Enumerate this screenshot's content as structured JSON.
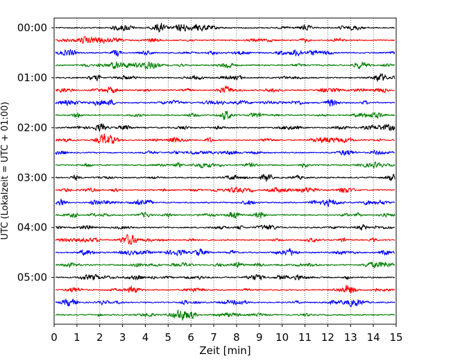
{
  "chart_data": {
    "type": "line",
    "title": "",
    "xlabel": "Zeit  [min]",
    "ylabel": "UTC (Lokalzeit = UTC + 01:00)",
    "xlim": [
      0,
      15
    ],
    "x_ticks": [
      0,
      1,
      2,
      3,
      4,
      5,
      6,
      7,
      8,
      9,
      10,
      11,
      12,
      13,
      14,
      15
    ],
    "y_tick_labels": [
      "00:00",
      "01:00",
      "02:00",
      "03:00",
      "04:00",
      "05:00"
    ],
    "trace_start_times": [
      "00:00",
      "00:15",
      "00:30",
      "00:45",
      "01:00",
      "01:15",
      "01:30",
      "01:45",
      "02:00",
      "02:15",
      "02:30",
      "02:45",
      "03:00",
      "03:15",
      "03:30",
      "03:45",
      "04:00",
      "04:15",
      "04:30",
      "04:45",
      "05:00",
      "05:15",
      "05:30",
      "05:45"
    ],
    "trace_colors": [
      "#000000",
      "#ff0000",
      "#0000ff",
      "#007f00"
    ],
    "grid": "vertical dotted lines at each minute",
    "signal": "continuous seismogram, low-amplitude noise"
  }
}
